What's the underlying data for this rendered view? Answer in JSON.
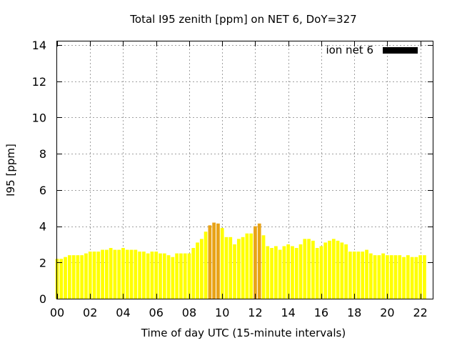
{
  "chart_data": {
    "type": "bar",
    "title": "Total I95 zenith [ppm] on NET 6, DoY=327",
    "xlabel": "Time of day UTC (15-minute intervals)",
    "ylabel": "I95 [ppm]",
    "xlim": [
      0,
      22.75
    ],
    "ylim": [
      0,
      14.2
    ],
    "x_ticks": [
      {
        "value": 0,
        "label": "00"
      },
      {
        "value": 2,
        "label": "02"
      },
      {
        "value": 4,
        "label": "04"
      },
      {
        "value": 6,
        "label": "06"
      },
      {
        "value": 8,
        "label": "08"
      },
      {
        "value": 10,
        "label": "10"
      },
      {
        "value": 12,
        "label": "12"
      },
      {
        "value": 14,
        "label": "14"
      },
      {
        "value": 16,
        "label": "16"
      },
      {
        "value": 18,
        "label": "18"
      },
      {
        "value": 20,
        "label": "20"
      },
      {
        "value": 22,
        "label": "22"
      }
    ],
    "y_ticks": [
      {
        "value": 0,
        "label": "0"
      },
      {
        "value": 2,
        "label": "2"
      },
      {
        "value": 4,
        "label": "4"
      },
      {
        "value": 6,
        "label": "6"
      },
      {
        "value": 8,
        "label": "8"
      },
      {
        "value": 10,
        "label": "10"
      },
      {
        "value": 12,
        "label": "12"
      },
      {
        "value": 14,
        "label": "14"
      }
    ],
    "grid": true,
    "legend": {
      "label": "ion net 6",
      "position": "top-right",
      "swatch_color": "#000000"
    },
    "colors": {
      "normal": "#ffff00",
      "elevated": "#e8a317"
    },
    "threshold": 4.0,
    "series": [
      {
        "interval_hours": 0.25,
        "values": [
          2.2,
          2.2,
          2.3,
          2.4,
          2.4,
          2.4,
          2.4,
          2.5,
          2.6,
          2.6,
          2.6,
          2.7,
          2.7,
          2.8,
          2.7,
          2.7,
          2.8,
          2.7,
          2.7,
          2.7,
          2.6,
          2.6,
          2.5,
          2.6,
          2.6,
          2.5,
          2.5,
          2.4,
          2.3,
          2.5,
          2.5,
          2.5,
          2.5,
          2.8,
          3.1,
          3.3,
          3.7,
          4.05,
          4.2,
          4.15,
          3.9,
          3.4,
          3.4,
          3.0,
          3.3,
          3.4,
          3.6,
          3.6,
          4.0,
          4.15,
          3.5,
          2.9,
          2.8,
          2.9,
          2.7,
          2.9,
          3.0,
          2.9,
          2.8,
          3.0,
          3.3,
          3.3,
          3.2,
          2.8,
          2.9,
          3.1,
          3.2,
          3.3,
          3.2,
          3.1,
          3.0,
          2.6,
          2.6,
          2.6,
          2.6,
          2.7,
          2.5,
          2.4,
          2.4,
          2.5,
          2.4,
          2.4,
          2.4,
          2.4,
          2.3,
          2.4,
          2.3,
          2.3,
          2.4,
          2.4
        ]
      }
    ]
  }
}
